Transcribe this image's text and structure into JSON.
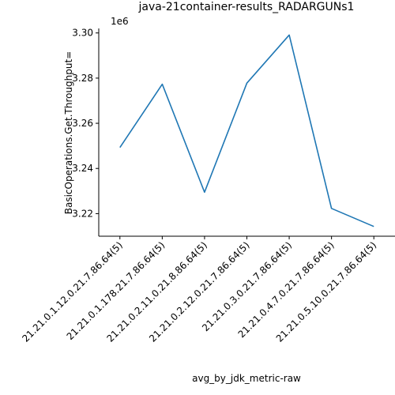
{
  "chart_data": {
    "type": "line",
    "title": "java-21container-results_RADARGUNs1",
    "xlabel": "avg_by_jdk_metric-raw",
    "ylabel": "BasicOperations.Get.Throughput=",
    "y_offset_label": "1e6",
    "categories": [
      "21.21.0.1.12.0.21.7.86.64(5)",
      "21.21.0.1.178.21.7.86.64(5)",
      "21.21.0.2.11.0.21.8.86.64(5)",
      "21.21.0.2.12.0.21.7.86.64(5)",
      "21.21.0.3.0.21.7.86.64(5)",
      "21.21.0.4.7.0.21.7.86.64(5)",
      "21.21.0.5.10.0.21.7.86.64(5)"
    ],
    "series": [
      {
        "values": [
          3249300,
          3277300,
          3229500,
          3277800,
          3299100,
          3222300,
          3214300
        ]
      }
    ],
    "yticks": [
      3220000,
      3240000,
      3260000,
      3280000,
      3300000
    ],
    "ytick_labels": [
      "3.22",
      "3.24",
      "3.26",
      "3.28",
      "3.30"
    ],
    "ylim": [
      3210000,
      3302000
    ],
    "grid": false,
    "line_color": "#1f77b4"
  }
}
